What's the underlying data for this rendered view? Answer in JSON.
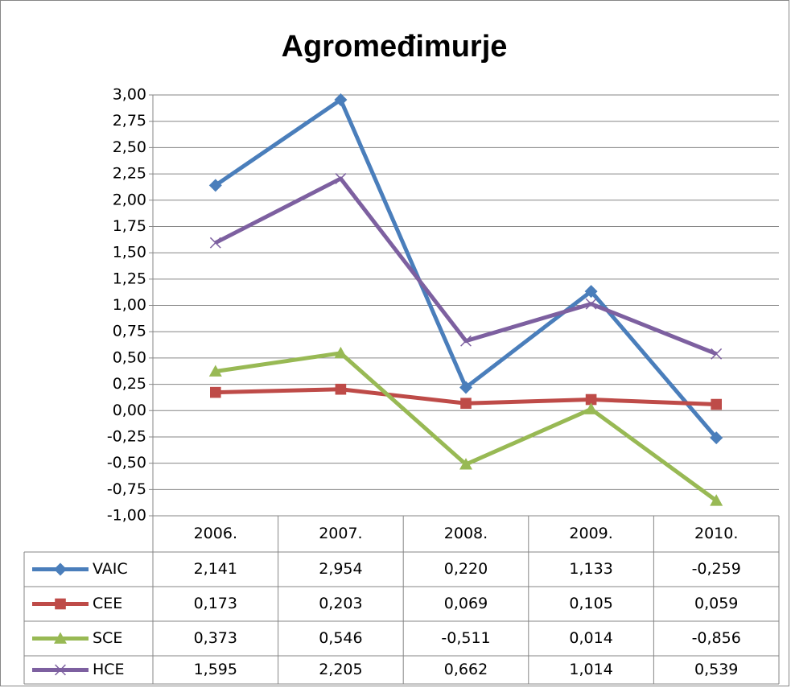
{
  "chart_data": {
    "type": "line",
    "title": "Agromeđimurje",
    "categories": [
      "2006.",
      "2007.",
      "2008.",
      "2009.",
      "2010."
    ],
    "ylim": [
      -1,
      3
    ],
    "yticks": [
      {
        "value": 3,
        "label": "3,00"
      },
      {
        "value": 2.75,
        "label": "2,75"
      },
      {
        "value": 2.5,
        "label": "2,50"
      },
      {
        "value": 2.25,
        "label": "2,25"
      },
      {
        "value": 2,
        "label": "2,00"
      },
      {
        "value": 1.75,
        "label": "1,75"
      },
      {
        "value": 1.5,
        "label": "1,50"
      },
      {
        "value": 1.25,
        "label": "1,25"
      },
      {
        "value": 1,
        "label": "1,00"
      },
      {
        "value": 0.75,
        "label": "0,75"
      },
      {
        "value": 0.5,
        "label": "0,50"
      },
      {
        "value": 0.25,
        "label": "0,25"
      },
      {
        "value": 0,
        "label": "0,00"
      },
      {
        "value": -0.25,
        "label": "-0,25"
      },
      {
        "value": -0.5,
        "label": "-0,50"
      },
      {
        "value": -0.75,
        "label": "-0,75"
      },
      {
        "value": -1,
        "label": "-1,00"
      }
    ],
    "grid": true,
    "series": [
      {
        "name": "VAIC",
        "color": "#4a7ebb",
        "marker": "diamond",
        "values": [
          2.141,
          2.954,
          0.22,
          1.133,
          -0.259
        ],
        "value_labels": [
          "2,141",
          "2,954",
          "0,220",
          "1,133",
          "-0,259"
        ]
      },
      {
        "name": "CEE",
        "color": "#be4b48",
        "marker": "square",
        "values": [
          0.173,
          0.203,
          0.069,
          0.105,
          0.059
        ],
        "value_labels": [
          "0,173",
          "0,203",
          "0,069",
          "0,105",
          "0,059"
        ]
      },
      {
        "name": "SCE",
        "color": "#98b954",
        "marker": "triangle",
        "values": [
          0.373,
          0.546,
          -0.511,
          0.014,
          -0.856
        ],
        "value_labels": [
          "0,373",
          "0,546",
          "-0,511",
          "0,014",
          "-0,856"
        ]
      },
      {
        "name": "HCE",
        "color": "#7d60a0",
        "marker": "x",
        "values": [
          1.595,
          2.205,
          0.662,
          1.014,
          0.539
        ],
        "value_labels": [
          "1,595",
          "2,205",
          "0,662",
          "1,014",
          "0,539"
        ]
      }
    ]
  }
}
